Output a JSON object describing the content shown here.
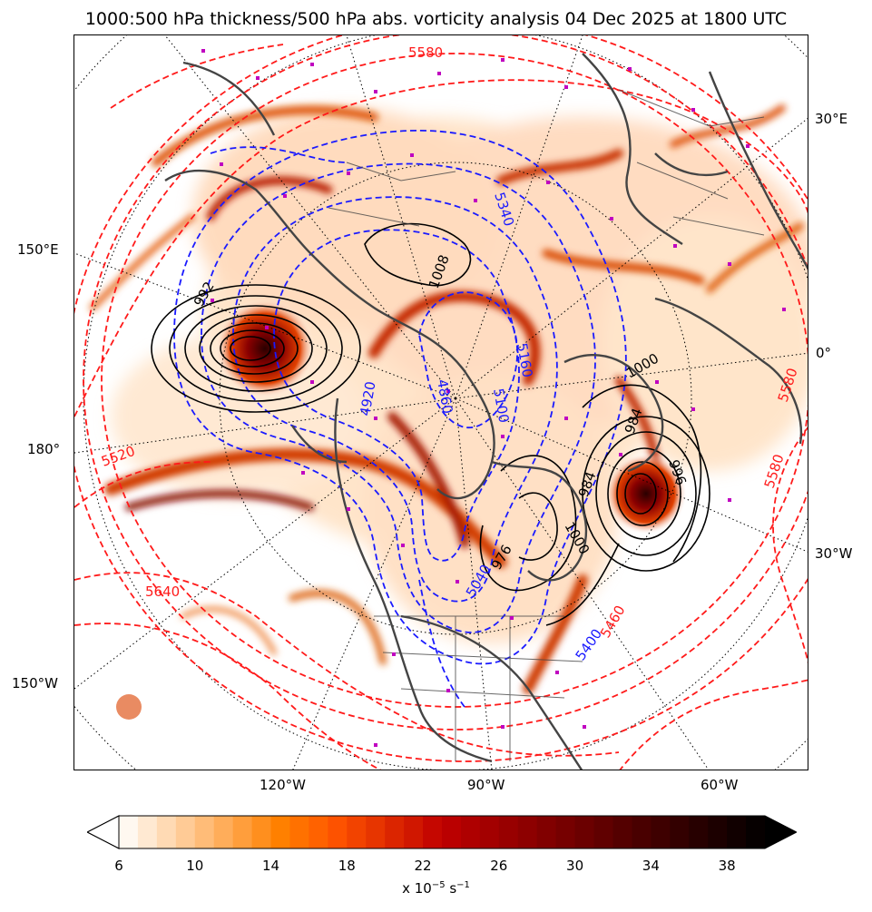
{
  "title": "1000:500 hPa thickness/500 hPa abs. vorticity analysis 04 Dec 2025 at 1800 UTC",
  "map": {
    "projection": "north-polar-stereographic",
    "lon_labels": {
      "e30": "30°E",
      "e150": "150°E",
      "zero": "0°",
      "d180": "180°",
      "w30": "30°W",
      "w150": "150°W",
      "w120": "120°W",
      "w90": "90°W",
      "w60": "60°W"
    },
    "contour_labels": {
      "red": [
        "5580",
        "5520",
        "5640",
        "5580",
        "5580"
      ],
      "blue": [
        "5340",
        "5100",
        "4920",
        "5160",
        "4860",
        "5400",
        "5460",
        "5040"
      ],
      "black": [
        "992",
        "984",
        "1000",
        "1008",
        "996",
        "984",
        "1000",
        "976"
      ]
    },
    "colors": {
      "thickness_warm": "#ff1a1a",
      "thickness_cold": "#1a1aff",
      "mslp": "#000000",
      "coastline": "#444444",
      "max_marker": "#c000c0"
    }
  },
  "colorbar": {
    "label_text": "x 10",
    "label_exp": "−5",
    "label_unit": " s",
    "label_unit_exp": "−1",
    "ticks": [
      "6",
      "10",
      "14",
      "18",
      "22",
      "26",
      "30",
      "34",
      "38"
    ],
    "min": 6,
    "max": 40,
    "step": 1,
    "extend": "both",
    "cmap": "gist_heat_r"
  }
}
